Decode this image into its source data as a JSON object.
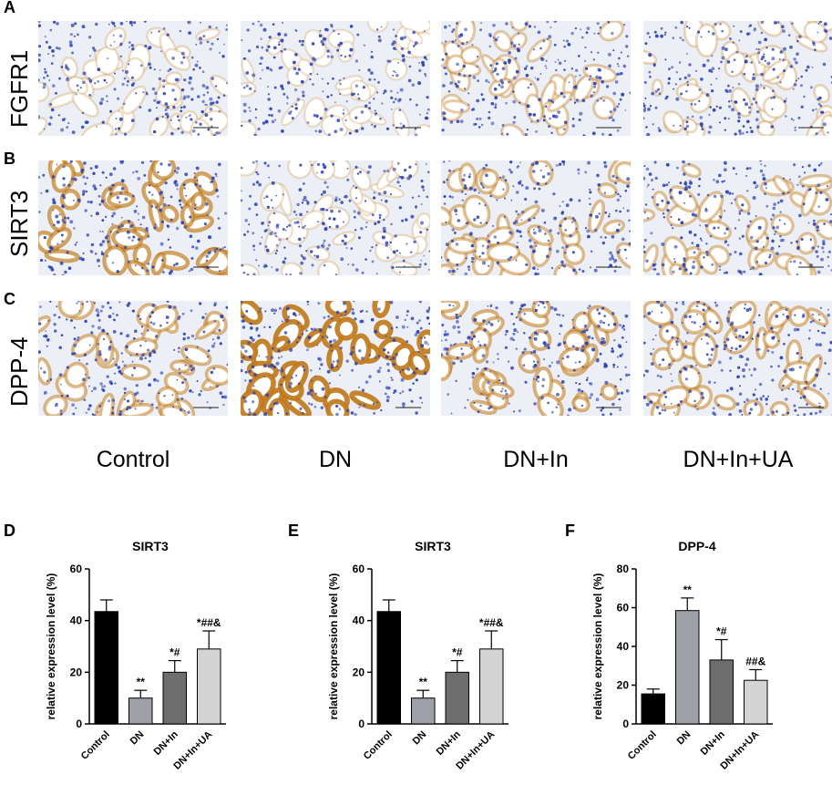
{
  "panels": {
    "A": "A",
    "B": "B",
    "C": "C",
    "D": "D",
    "E": "E",
    "F": "F"
  },
  "rows": [
    {
      "label": "FGFR1",
      "stain": [
        0.12,
        0.08,
        0.28,
        0.18
      ]
    },
    {
      "label": "SIRT3",
      "stain": [
        0.62,
        0.1,
        0.4,
        0.34
      ]
    },
    {
      "label": "DPP-4",
      "stain": [
        0.45,
        0.9,
        0.5,
        0.42
      ]
    }
  ],
  "columns": [
    "Control",
    "DN",
    "DN+In",
    "DN+In+UA"
  ],
  "colors": {
    "hematoxylin": "#2b3fb0",
    "dab": "#c07a1c",
    "background": "#eef0f6",
    "bar_control": "#000000",
    "bar_dn": "#9ea0a8",
    "bar_dnin": "#6e6e6e",
    "bar_dninua": "#d3d3d3"
  },
  "chart_data": [
    {
      "type": "bar",
      "title": "SIRT3",
      "ylabel": "relative expression level (%)",
      "xlabel": "",
      "categories": [
        "Control",
        "DN",
        "DN+In",
        "DN+In+UA"
      ],
      "values": [
        43.5,
        10,
        20,
        29
      ],
      "errors": [
        4.5,
        3,
        4.5,
        7
      ],
      "annotations": [
        "",
        "**",
        "*#",
        "*##&"
      ],
      "ylim": [
        0,
        60
      ],
      "yticks": [
        0,
        20,
        40,
        60
      ],
      "grid": false
    },
    {
      "type": "bar",
      "title": "SIRT3",
      "ylabel": "relative expression level (%)",
      "xlabel": "",
      "categories": [
        "Control",
        "DN",
        "DN+In",
        "DN+In+UA"
      ],
      "values": [
        43.5,
        10,
        20,
        29
      ],
      "errors": [
        4.5,
        3,
        4.5,
        7
      ],
      "annotations": [
        "",
        "**",
        "*#",
        "*##&"
      ],
      "ylim": [
        0,
        60
      ],
      "yticks": [
        0,
        20,
        40,
        60
      ],
      "grid": false
    },
    {
      "type": "bar",
      "title": "DPP-4",
      "ylabel": "relative expression level (%)",
      "xlabel": "",
      "categories": [
        "Control",
        "DN",
        "DN+In",
        "DN+In+UA"
      ],
      "values": [
        15.5,
        58.5,
        33,
        22.5
      ],
      "errors": [
        2.5,
        6.5,
        10.5,
        5.5
      ],
      "annotations": [
        "",
        "**",
        "*#",
        "##&"
      ],
      "ylim": [
        0,
        80
      ],
      "yticks": [
        0,
        20,
        40,
        60,
        80
      ],
      "grid": false
    }
  ]
}
